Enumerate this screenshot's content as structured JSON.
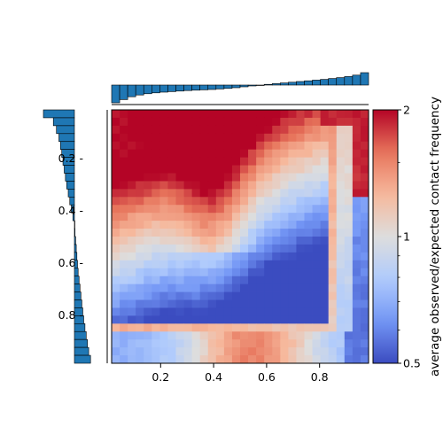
{
  "chart_data": {
    "type": "heatmap",
    "title": "",
    "xlabel": "",
    "ylabel": "",
    "grid_size": 32,
    "x_ticks": [
      {
        "value": 0.2,
        "label": "0.2"
      },
      {
        "value": 0.4,
        "label": "0.4"
      },
      {
        "value": 0.6,
        "label": "0.6"
      },
      {
        "value": 0.8,
        "label": "0.8"
      }
    ],
    "y_ticks": [
      {
        "value": 0.2,
        "label": "0.2 -"
      },
      {
        "value": 0.4,
        "label": "0.4 -"
      },
      {
        "value": 0.6,
        "label": "0.6 -"
      },
      {
        "value": 0.8,
        "label": "0.8 -"
      }
    ],
    "x_range": [
      0.015,
      0.985
    ],
    "y_range": [
      0.015,
      0.985
    ],
    "y_inverted": true,
    "colorbar": {
      "label": "average observed/expected contact frequency",
      "scale": "log",
      "range": [
        0.5,
        2
      ],
      "ticks": [
        {
          "value": 2,
          "label": "2"
        },
        {
          "value": 1,
          "label": "1"
        },
        {
          "value": 0.5,
          "label": "0.5"
        }
      ],
      "colormap": "coolwarm",
      "colors": [
        "#3b4cc0",
        "#7396f5",
        "#b0cbfc",
        "#dddddd",
        "#f6b89c",
        "#e7745b",
        "#b40426"
      ]
    },
    "heatmap_model": {
      "description_of_pattern": "high values near both axes edges, low values in lower-left region, bright stripe at x≈0.87 and y≈0.85",
      "stripe_x": 0.87,
      "stripe_y": 0.85
    },
    "top_marginal": {
      "type": "bar",
      "bar_color": "#1f77b4",
      "values": [
        -1.0,
        -0.82,
        -0.66,
        -0.56,
        -0.49,
        -0.44,
        -0.4,
        -0.37,
        -0.34,
        -0.31,
        -0.29,
        -0.27,
        -0.25,
        -0.22,
        -0.19,
        -0.15,
        -0.1,
        -0.05,
        0.0,
        0.04,
        0.08,
        0.12,
        0.16,
        0.2,
        0.24,
        0.28,
        0.32,
        0.37,
        0.42,
        0.48,
        0.56,
        0.7
      ]
    },
    "left_marginal": {
      "type": "bar",
      "bar_color": "#1f77b4",
      "values": [
        -1.0,
        -0.68,
        -0.58,
        -0.5,
        -0.45,
        -0.41,
        -0.37,
        -0.33,
        -0.29,
        -0.25,
        -0.2,
        -0.15,
        -0.1,
        -0.05,
        0.0,
        0.02,
        0.04,
        0.06,
        0.08,
        0.1,
        0.12,
        0.15,
        0.18,
        0.21,
        0.24,
        0.27,
        0.3,
        0.34,
        0.38,
        0.42,
        0.46,
        0.52
      ]
    }
  }
}
